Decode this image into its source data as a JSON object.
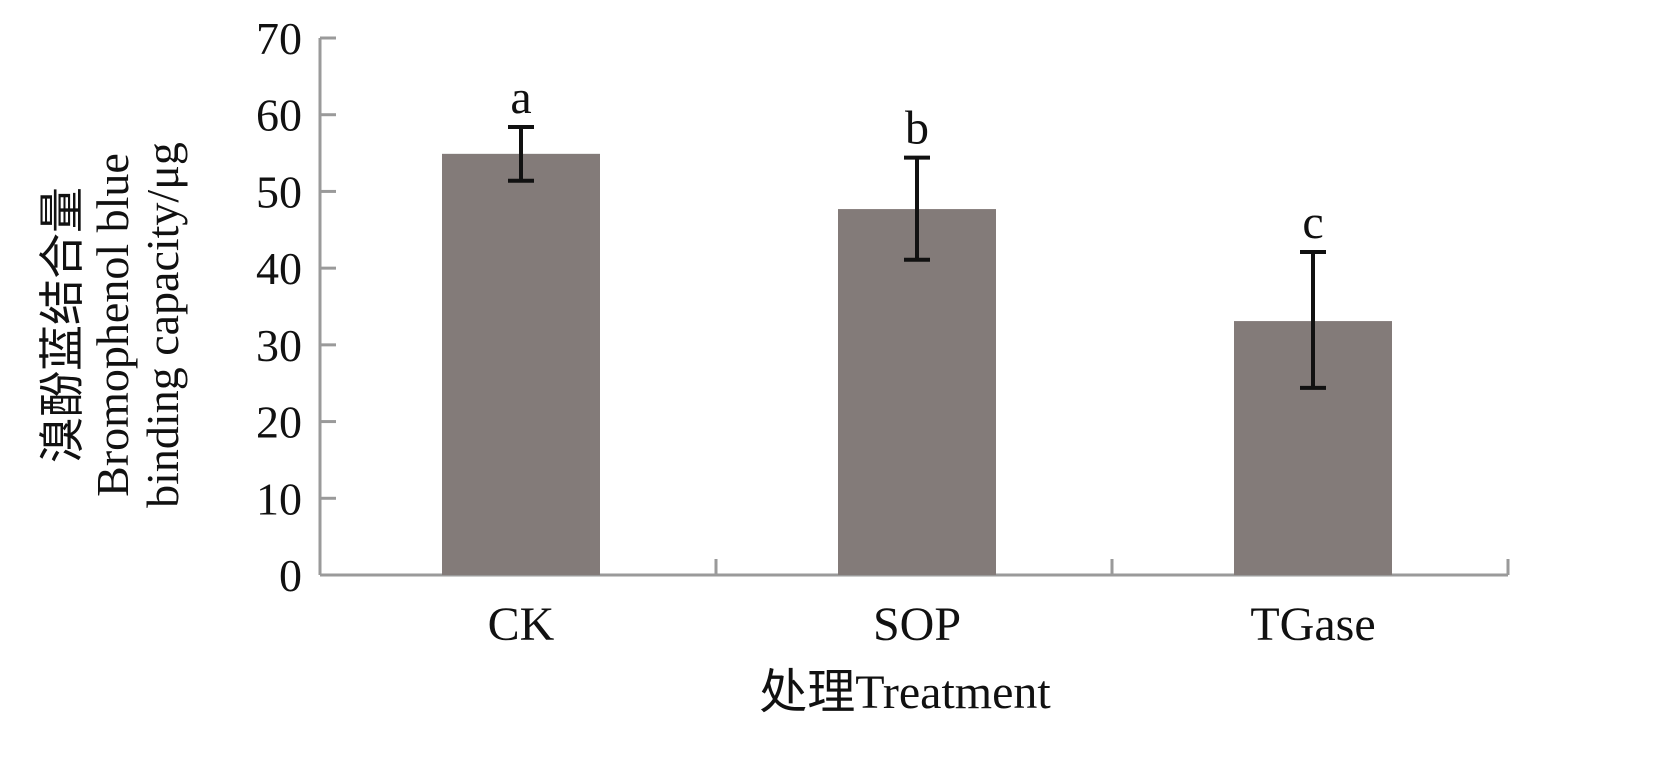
{
  "chart_data": {
    "type": "bar",
    "title": "",
    "xlabel": "处理Treatment",
    "ylabel_lines": [
      "溴酚蓝结合量",
      "Bromophenol blue",
      "binding capacity/μg"
    ],
    "categories": [
      "CK",
      "SOP",
      "TGase"
    ],
    "values": [
      54.9,
      47.7,
      33.1
    ],
    "error_upper": [
      58.4,
      54.4,
      42.1
    ],
    "error_lower": [
      51.4,
      41.1,
      24.4
    ],
    "significance_labels": [
      "a",
      "b",
      "c"
    ],
    "ylim": [
      0,
      70
    ],
    "yticks": [
      0,
      10,
      20,
      30,
      40,
      50,
      60,
      70
    ],
    "grid": false,
    "legend": "none",
    "colors": {
      "bar": "#837b79",
      "axis": "#9a9a9a",
      "error": "#111111"
    }
  }
}
